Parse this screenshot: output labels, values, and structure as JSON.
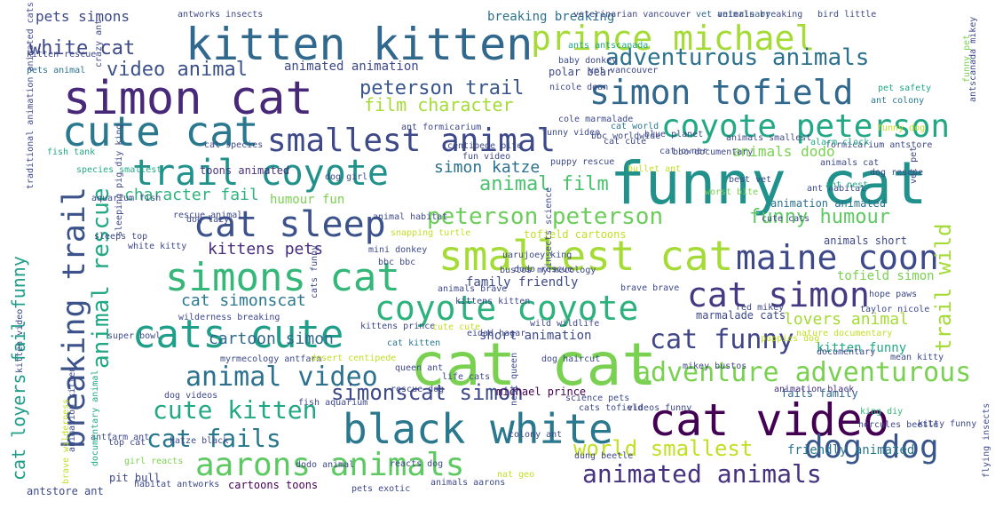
{
  "wordcloud": {
    "words": [
      {
        "text": "cat cat",
        "color": "#7ad151"
      },
      {
        "text": "funny cat",
        "color": "#21918c"
      },
      {
        "text": "cat video",
        "color": "#440154"
      },
      {
        "text": "black white",
        "color": "#2a788e"
      },
      {
        "text": "simon cat",
        "color": "#482878"
      },
      {
        "text": "kitten kitten",
        "color": "#31688e"
      },
      {
        "text": "simons cat",
        "color": "#35b779"
      },
      {
        "text": "cats cute",
        "color": "#1f9e89"
      },
      {
        "text": "smallest cat",
        "color": "#a5db36"
      },
      {
        "text": "cute cat",
        "color": "#2a788e"
      },
      {
        "text": "cat sleep",
        "color": "#3b528b"
      },
      {
        "text": "trail coyote",
        "color": "#21918c"
      },
      {
        "text": "prince michael",
        "color": "#a5db36"
      },
      {
        "text": "simon tofield",
        "color": "#31688e"
      },
      {
        "text": "smallest animal",
        "color": "#3e4989"
      },
      {
        "text": "coyote peterson",
        "color": "#22a884"
      },
      {
        "text": "coyote coyote",
        "color": "#2db27d"
      },
      {
        "text": "maine coon",
        "color": "#3e4989"
      },
      {
        "text": "cat simon",
        "color": "#443983"
      },
      {
        "text": "aarons animals",
        "color": "#5ec962"
      },
      {
        "text": "dog dog",
        "color": "#39568c"
      },
      {
        "text": "breaking trail",
        "color": "#3b528b"
      },
      {
        "text": "cat loyers fail funny",
        "color": "#1f9e89"
      },
      {
        "text": "adventure adventurous",
        "color": "#7ad151"
      },
      {
        "text": "cat funny",
        "color": "#404688"
      },
      {
        "text": "animal video",
        "color": "#2c728e"
      },
      {
        "text": "cute kitten",
        "color": "#22a884"
      },
      {
        "text": "cat fails",
        "color": "#2a788e"
      },
      {
        "text": "animated animals",
        "color": "#46327e"
      },
      {
        "text": "peterson peterson",
        "color": "#6ccd5a"
      },
      {
        "text": "simonscat simon",
        "color": "#3e4989"
      },
      {
        "text": "adventurous animals",
        "color": "#2c728e"
      },
      {
        "text": "world smallest",
        "color": "#c2df23"
      },
      {
        "text": "trail wild",
        "color": "#a5db36"
      },
      {
        "text": "animal rescue",
        "color": "#22a884"
      },
      {
        "text": "video animal",
        "color": "#3b528b"
      },
      {
        "text": "white cat",
        "color": "#3e4989"
      },
      {
        "text": "animal film",
        "color": "#4ac16d"
      },
      {
        "text": "funny humour",
        "color": "#5ec962"
      },
      {
        "text": "peterson trail",
        "color": "#39568c"
      },
      {
        "text": "simon katze",
        "color": "#2c728e"
      },
      {
        "text": "kittens pets",
        "color": "#472d7b"
      },
      {
        "text": "cat simonscat",
        "color": "#2a788e"
      },
      {
        "text": "cartoon simon",
        "color": "#31688e"
      },
      {
        "text": "character fail",
        "color": "#2db27d"
      },
      {
        "text": "film character",
        "color": "#a5db36"
      },
      {
        "text": "lovers animal",
        "color": "#a5db36"
      },
      {
        "text": "kitten funny",
        "color": "#22a884"
      },
      {
        "text": "pets simons",
        "color": "#3e4989"
      },
      {
        "text": "breaking breaking",
        "color": "#2c728e"
      },
      {
        "text": "animals dodo",
        "color": "#7ad151"
      },
      {
        "text": "tofield simon",
        "color": "#7ad151"
      },
      {
        "text": "family friendly",
        "color": "#3e4989"
      },
      {
        "text": "friendly animated",
        "color": "#2a788e"
      },
      {
        "text": "fails family",
        "color": "#31688e"
      },
      {
        "text": "animated animation",
        "color": "#3e4989"
      },
      {
        "text": "humour fun",
        "color": "#7ad151"
      },
      {
        "text": "short animation",
        "color": "#3e4989"
      },
      {
        "text": "michael prince",
        "color": "#440154"
      },
      {
        "text": "marmalade cats",
        "color": "#3e4989"
      },
      {
        "text": "cat kitten",
        "color": "#2a788e"
      },
      {
        "text": "polar bear",
        "color": "#3e4989"
      },
      {
        "text": "animals short",
        "color": "#3e4989"
      },
      {
        "text": "animation black",
        "color": "#46327e"
      },
      {
        "text": "king diy",
        "color": "#35b779"
      },
      {
        "text": "cartoons toons",
        "color": "#440154"
      },
      {
        "text": "pit bull",
        "color": "#3e4989"
      },
      {
        "text": "antworks insects",
        "color": "#3e4989"
      },
      {
        "text": "antstore ant",
        "color": "#3e4989"
      },
      {
        "text": "girl reacts",
        "color": "#7ad151"
      },
      {
        "text": "animals aarons",
        "color": "#3e4989"
      },
      {
        "text": "tofield cartoons",
        "color": "#c2df23"
      },
      {
        "text": "animation animated",
        "color": "#2c728e"
      },
      {
        "text": "vet veterinary",
        "color": "#31688e"
      },
      {
        "text": "animals smallest",
        "color": "#3e4989"
      },
      {
        "text": "blue planet",
        "color": "#3e4989"
      },
      {
        "text": "cole marmalade",
        "color": "#3e4989"
      },
      {
        "text": "animals breaking",
        "color": "#3e4989"
      },
      {
        "text": "toons animated",
        "color": "#46327e"
      },
      {
        "text": "fish tank",
        "color": "#22a884"
      },
      {
        "text": "dog rescue",
        "color": "#3e4989"
      },
      {
        "text": "ant habitat",
        "color": "#3e4989"
      },
      {
        "text": "ant nest",
        "color": "#22a884"
      },
      {
        "text": "funny dog",
        "color": "#c2df23"
      },
      {
        "text": "pet safety",
        "color": "#22a884"
      },
      {
        "text": "ant colony",
        "color": "#2a788e"
      },
      {
        "text": "antscanada mikey",
        "color": "#3e4989"
      },
      {
        "text": "funny pet",
        "color": "#7ad151"
      },
      {
        "text": "hope paws",
        "color": "#3e4989"
      },
      {
        "text": "taylor nicole",
        "color": "#3e4989"
      },
      {
        "text": "mikey bustos",
        "color": "#3e4989"
      },
      {
        "text": "nature documentary",
        "color": "#c2df23"
      },
      {
        "text": "mean kitty",
        "color": "#3e4989"
      },
      {
        "text": "bird little",
        "color": "#3e4989"
      },
      {
        "text": "dog videos",
        "color": "#3e4989"
      },
      {
        "text": "animals cat",
        "color": "#3e4989"
      },
      {
        "text": "best vet",
        "color": "#3e4989"
      },
      {
        "text": "worst bite",
        "color": "#7ad151"
      },
      {
        "text": "wild wildlife",
        "color": "#3e4989"
      },
      {
        "text": "queen ant",
        "color": "#3e4989"
      },
      {
        "text": "kittens prince",
        "color": "#3e4989"
      },
      {
        "text": "kitten rescue",
        "color": "#3e4989"
      },
      {
        "text": "pets animal",
        "color": "#2c728e"
      },
      {
        "text": "ants antscanada",
        "color": "#22a884"
      },
      {
        "text": "baby donkey",
        "color": "#3e4989"
      },
      {
        "text": "nicole dean",
        "color": "#3e4989"
      },
      {
        "text": "vet vancouver",
        "color": "#3e4989"
      },
      {
        "text": "veterinarian vancouver",
        "color": "#3e4989"
      },
      {
        "text": "bullet ant",
        "color": "#c2df23"
      },
      {
        "text": "bbc documentary",
        "color": "#3e4989"
      },
      {
        "text": "bbc worldwide",
        "color": "#3e4989"
      },
      {
        "text": "fun video",
        "color": "#3e4989"
      },
      {
        "text": "centipede bite",
        "color": "#3e4989"
      },
      {
        "text": "aquarium fish",
        "color": "#3e4989"
      },
      {
        "text": "species smallest",
        "color": "#22a884"
      },
      {
        "text": "mini donkey",
        "color": "#3e4989"
      },
      {
        "text": "snapping turtle",
        "color": "#c2df23"
      },
      {
        "text": "uarujoey king",
        "color": "#3e4989"
      },
      {
        "text": "dodo rescue",
        "color": "#3e4989"
      },
      {
        "text": "brave brave",
        "color": "#3e4989"
      },
      {
        "text": "formicarium antstore",
        "color": "#3e4989"
      },
      {
        "text": "vet pet",
        "color": "#3e4989"
      },
      {
        "text": "ant formicarium",
        "color": "#3e4989"
      },
      {
        "text": "cat world",
        "color": "#2a788e"
      },
      {
        "text": "cat species",
        "color": "#3e4989"
      },
      {
        "text": "dog girl",
        "color": "#3e4989"
      },
      {
        "text": "myrmecology antfarm",
        "color": "#3e4989"
      },
      {
        "text": "habitat antworks",
        "color": "#3e4989"
      },
      {
        "text": "antfarm ant",
        "color": "#3e4989"
      },
      {
        "text": "top cat",
        "color": "#3e4989"
      },
      {
        "text": "super bowl",
        "color": "#3e4989"
      },
      {
        "text": "bbc bbc",
        "color": "#3e4989"
      },
      {
        "text": "sleeps top",
        "color": "#3e4989"
      },
      {
        "text": "white kitty",
        "color": "#3e4989"
      },
      {
        "text": "wilderness breaking",
        "color": "#3e4989"
      },
      {
        "text": "rescue animal",
        "color": "#3e4989"
      },
      {
        "text": "reacts dog",
        "color": "#3e4989"
      },
      {
        "text": "rescue dog",
        "color": "#3e4989"
      },
      {
        "text": "colony ant",
        "color": "#3e4989"
      },
      {
        "text": "life cats",
        "color": "#3e4989"
      },
      {
        "text": "science pets",
        "color": "#3e4989"
      },
      {
        "text": "cats tofield",
        "color": "#3e4989"
      },
      {
        "text": "videos funny",
        "color": "#3e4989"
      },
      {
        "text": "hercules beetle",
        "color": "#3e4989"
      },
      {
        "text": "kitty funny",
        "color": "#3e4989"
      },
      {
        "text": "fish aquarium",
        "color": "#3e4989"
      },
      {
        "text": "katze black",
        "color": "#3e4989"
      },
      {
        "text": "dodo animal",
        "color": "#3e4989"
      },
      {
        "text": "pets exotic",
        "color": "#3e4989"
      },
      {
        "text": "nat geo",
        "color": "#c2df23"
      },
      {
        "text": "dung beetle",
        "color": "#3e4989"
      },
      {
        "text": "nest queen",
        "color": "#3e4989"
      },
      {
        "text": "insects science",
        "color": "#3e4989"
      },
      {
        "text": "sleeping pig diy king",
        "color": "#3e4989"
      },
      {
        "text": "alarm clock",
        "color": "#22a884"
      },
      {
        "text": "traditional animation animated cats",
        "color": "#3e4989"
      },
      {
        "text": "animation kitten",
        "color": "#3e4989"
      },
      {
        "text": "documentary animal",
        "color": "#22a884"
      },
      {
        "text": "kitten video",
        "color": "#3e4989"
      },
      {
        "text": "flying insects",
        "color": "#3e4989"
      },
      {
        "text": "brave wilderness",
        "color": "#c2df23"
      },
      {
        "text": "crazy ant",
        "color": "#3e4989"
      },
      {
        "text": "puppies dog",
        "color": "#c2df23"
      },
      {
        "text": "dog haircut",
        "color": "#3e4989"
      },
      {
        "text": "desert centipede",
        "color": "#c2df23"
      },
      {
        "text": "cute cute",
        "color": "#c2df23"
      },
      {
        "text": "eidad hagar",
        "color": "#3e4989"
      },
      {
        "text": "cats funny",
        "color": "#3e4989"
      },
      {
        "text": "kittens kitten",
        "color": "#3e4989"
      },
      {
        "text": "animals brave",
        "color": "#3e4989"
      },
      {
        "text": "red mikey",
        "color": "#3e4989"
      },
      {
        "text": "bustos myrmecology",
        "color": "#3e4989"
      },
      {
        "text": "animal habitat",
        "color": "#3e4989"
      },
      {
        "text": "dog lazy",
        "color": "#3e4989"
      },
      {
        "text": "cat owner",
        "color": "#3e4989"
      },
      {
        "text": "cat cute",
        "color": "#3e4989"
      },
      {
        "text": "puppy rescue",
        "color": "#3e4989"
      },
      {
        "text": "documentary",
        "color": "#3e4989"
      },
      {
        "text": "cute cats",
        "color": "#3e4989"
      },
      {
        "text": "funny video",
        "color": "#3e4989"
      }
    ]
  }
}
